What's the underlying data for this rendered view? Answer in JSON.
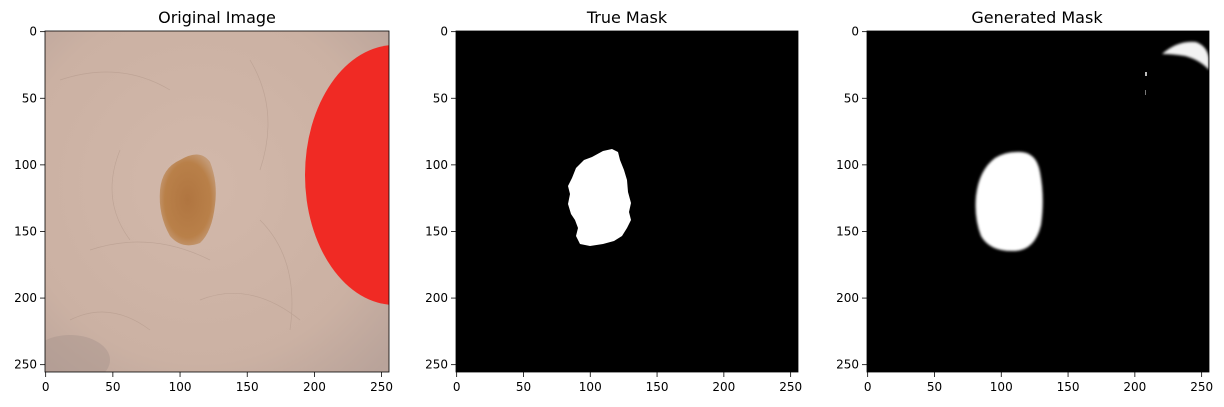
{
  "panels": [
    {
      "title": "Original Image",
      "kind": "photo",
      "x_ticks": [
        "0",
        "50",
        "100",
        "150",
        "200",
        "250"
      ],
      "y_ticks": [
        "0",
        "50",
        "100",
        "150",
        "200",
        "250"
      ],
      "colors": {
        "skin": "#cfb4a6",
        "skin_dark": "#b8a196",
        "lesion": "#b9804a",
        "lesion_dark": "#a8713f",
        "red_marker": "#f02a24"
      }
    },
    {
      "title": "True Mask",
      "kind": "mask",
      "x_ticks": [
        "0",
        "50",
        "100",
        "150",
        "200",
        "250"
      ],
      "y_ticks": [
        "0",
        "50",
        "100",
        "150",
        "200",
        "250"
      ],
      "colors": {
        "background": "#000000",
        "mask": "#ffffff"
      }
    },
    {
      "title": "Generated Mask",
      "kind": "mask",
      "x_ticks": [
        "0",
        "50",
        "100",
        "150",
        "200",
        "250"
      ],
      "y_ticks": [
        "0",
        "50",
        "100",
        "150",
        "200",
        "250"
      ],
      "colors": {
        "background": "#000000",
        "mask": "#ffffff"
      }
    }
  ]
}
